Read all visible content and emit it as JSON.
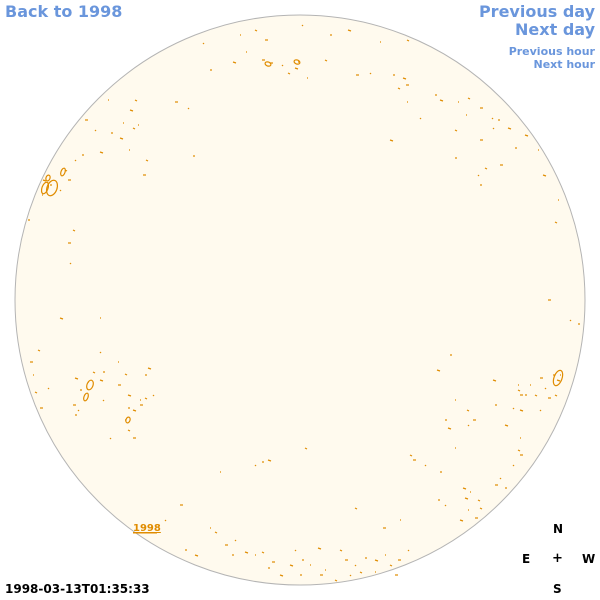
{
  "nav": {
    "back": "Back to 1998",
    "previous_day": "Previous day",
    "next_day": "Next day",
    "previous_hour": "Previous hour",
    "next_hour": "Next hour"
  },
  "disk": {
    "label": "1998",
    "fill_color": "#fffaee",
    "edge_color": "#b4b4b4",
    "contour_color": "#e08c00"
  },
  "compass": {
    "n": "N",
    "e": "E",
    "center": "+",
    "w": "W",
    "s": "S"
  },
  "timestamp": "1998-03-13T01:35:33"
}
